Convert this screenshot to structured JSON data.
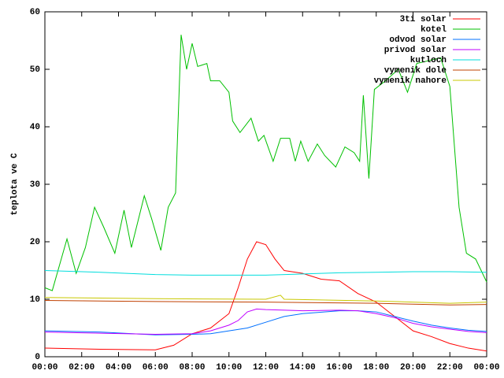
{
  "chart_data": {
    "type": "line",
    "y_label": "teplota ve C",
    "ylim": [
      0,
      60
    ],
    "yticks": [
      0,
      10,
      20,
      30,
      40,
      50,
      60
    ],
    "xlim": [
      0,
      24
    ],
    "xticks": [
      {
        "value": 0,
        "label": "00:00"
      },
      {
        "value": 2,
        "label": "02:00"
      },
      {
        "value": 4,
        "label": "04:00"
      },
      {
        "value": 6,
        "label": "06:00"
      },
      {
        "value": 8,
        "label": "08:00"
      },
      {
        "value": 10,
        "label": "10:00"
      },
      {
        "value": 12,
        "label": "12:00"
      },
      {
        "value": 14,
        "label": "14:00"
      },
      {
        "value": 16,
        "label": "16:00"
      },
      {
        "value": 18,
        "label": "18:00"
      },
      {
        "value": 20,
        "label": "20:00"
      },
      {
        "value": 22,
        "label": "22:00"
      },
      {
        "value": 24,
        "label": "00:00"
      }
    ],
    "legend": "top-right",
    "series": [
      {
        "name": "3ti solar",
        "color": "#ff0000",
        "x": [
          0,
          3,
          6,
          7,
          8,
          9,
          10,
          10.5,
          11,
          11.5,
          12,
          12.5,
          13,
          14,
          15,
          16,
          17,
          18,
          19,
          20,
          21,
          22,
          23,
          24
        ],
        "values": [
          1.5,
          1.3,
          1.2,
          2,
          4,
          5,
          7.5,
          12,
          17,
          20,
          19.5,
          17,
          15,
          14.5,
          13.5,
          13.2,
          11,
          9.5,
          7,
          4.5,
          3.5,
          2.3,
          1.5,
          1
        ]
      },
      {
        "name": "kotel",
        "color": "#00c000",
        "x": [
          0,
          0.4,
          1.2,
          1.7,
          2.2,
          2.7,
          3.2,
          3.8,
          4.3,
          4.7,
          5.4,
          5.8,
          6.3,
          6.7,
          7.1,
          7.4,
          7.7,
          8,
          8.3,
          8.8,
          9,
          9.5,
          10,
          10.2,
          10.6,
          11.2,
          11.6,
          11.9,
          12.4,
          12.8,
          13.3,
          13.6,
          13.9,
          14.3,
          14.8,
          15.2,
          15.8,
          16.3,
          16.8,
          17.1,
          17.3,
          17.6,
          17.9,
          18.5,
          19.2,
          19.7,
          20.2,
          21.5,
          22,
          22.5,
          22.9,
          23.4,
          24
        ],
        "values": [
          12,
          11.5,
          20.5,
          14.5,
          19,
          26,
          22.5,
          18,
          25.5,
          19,
          28,
          24,
          18.5,
          26,
          28.5,
          56,
          50,
          54.5,
          50.5,
          51,
          48,
          48,
          46,
          41,
          39,
          41.5,
          37.5,
          38.5,
          34,
          38,
          38,
          34,
          37.5,
          34,
          37,
          35,
          33,
          36.5,
          35.5,
          34,
          45.5,
          31,
          46.5,
          48,
          50,
          46,
          51,
          52,
          47,
          26,
          18,
          17,
          13
        ]
      },
      {
        "name": "odvod solar",
        "color": "#0070ff",
        "x": [
          0,
          3,
          6,
          8,
          9,
          10,
          11,
          12,
          13,
          14,
          16,
          17,
          18,
          19,
          20,
          21,
          22,
          23,
          24
        ],
        "values": [
          4.5,
          4.3,
          3.8,
          3.9,
          4,
          4.5,
          5,
          6,
          7,
          7.5,
          8,
          8,
          7.8,
          7,
          6.2,
          5.5,
          5,
          4.6,
          4.4
        ]
      },
      {
        "name": "privod solar",
        "color": "#c000ff",
        "x": [
          0,
          3,
          6,
          8,
          9,
          10,
          10.5,
          11,
          11.5,
          12,
          14,
          16,
          17,
          18,
          19,
          20,
          21,
          22,
          23,
          24
        ],
        "values": [
          4.3,
          4.1,
          3.9,
          4,
          4.5,
          5.5,
          6.3,
          7.8,
          8.3,
          8.2,
          8,
          8.1,
          8,
          7.5,
          6.8,
          5.8,
          5.2,
          4.8,
          4.4,
          4.2
        ]
      },
      {
        "name": "kutloch",
        "color": "#00dddd",
        "x": [
          0,
          3,
          6,
          8,
          10,
          12,
          14,
          16,
          18,
          20,
          22,
          24
        ],
        "values": [
          15,
          14.7,
          14.3,
          14.2,
          14.2,
          14.2,
          14.4,
          14.6,
          14.7,
          14.8,
          14.8,
          14.7
        ]
      },
      {
        "name": "vymenik dole",
        "color": "#c04000",
        "x": [
          0,
          6,
          12,
          18,
          22,
          24
        ],
        "values": [
          9.8,
          9.6,
          9.5,
          9.3,
          9,
          9.1
        ]
      },
      {
        "name": "vymenik nahore",
        "color": "#c8c800",
        "x": [
          0,
          6,
          12,
          12.8,
          13,
          18,
          22,
          24
        ],
        "values": [
          10.3,
          10.1,
          10,
          10.7,
          10,
          9.7,
          9.3,
          9.5
        ]
      }
    ]
  }
}
